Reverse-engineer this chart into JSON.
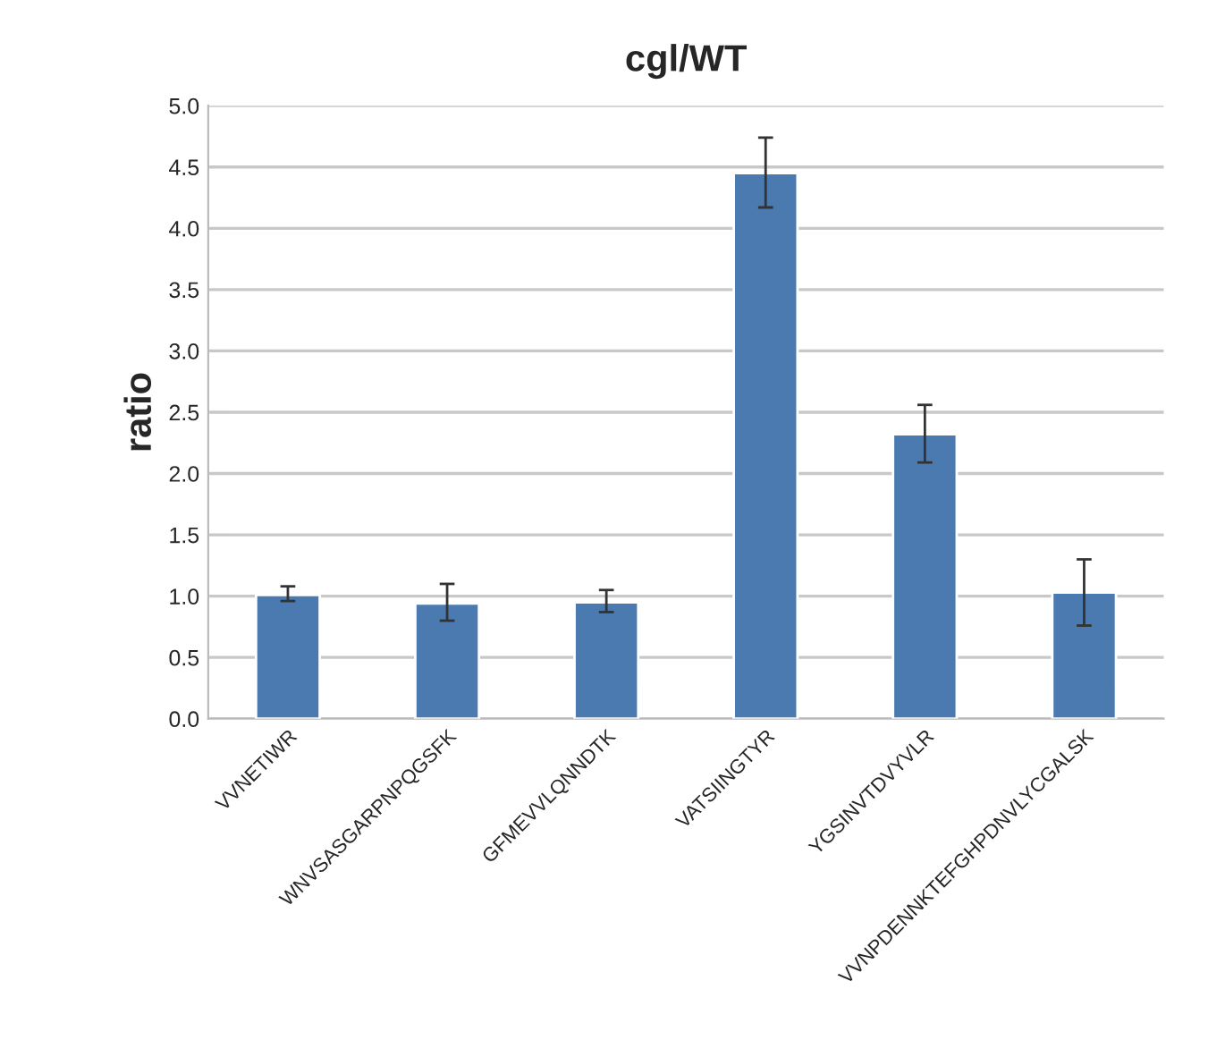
{
  "chart_data": {
    "type": "bar",
    "title": "cgl/WT",
    "ylabel": "ratio",
    "categories": [
      "VVNETIWR",
      "WNVSASGARPNPQGSFK",
      "GFMEVVLQNNDTK",
      "VATSIINGTYR",
      "YGSINVTDVYVLR",
      "VVNPDENNKTEFGHPDNVLYCGALSK"
    ],
    "values": [
      1.01,
      0.94,
      0.95,
      4.45,
      2.32,
      1.03
    ],
    "errors": [
      [
        0.96,
        1.08
      ],
      [
        0.8,
        1.1
      ],
      [
        0.87,
        1.05
      ],
      [
        4.17,
        4.74
      ],
      [
        2.09,
        2.56
      ],
      [
        0.76,
        1.3
      ]
    ],
    "color": "#4a7ab0",
    "ylim": [
      0,
      5
    ],
    "yticks": [
      {
        "value": 0,
        "label": "0.0"
      },
      {
        "value": 0.5,
        "label": "0.5"
      },
      {
        "value": 1,
        "label": "1.0"
      },
      {
        "value": 1.5,
        "label": "1.5"
      },
      {
        "value": 2,
        "label": "2.0"
      },
      {
        "value": 2.5,
        "label": "2.5"
      },
      {
        "value": 3,
        "label": "3.0"
      },
      {
        "value": 3.5,
        "label": "3.5"
      },
      {
        "value": 4,
        "label": "4.0"
      },
      {
        "value": 4.5,
        "label": "4.5"
      },
      {
        "value": 5,
        "label": "5.0"
      }
    ],
    "grid": "y"
  }
}
